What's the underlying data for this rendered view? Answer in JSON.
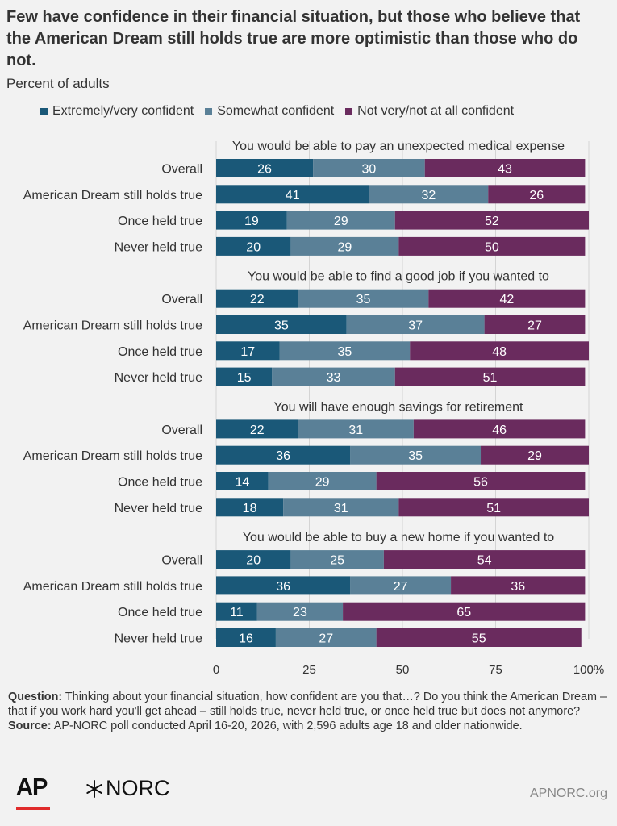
{
  "title": "Few have confidence in their financial situation, but those who believe that the American Dream still holds true are more optimistic than those who do not.",
  "subtitle": "Percent of adults",
  "legend": [
    {
      "label": "Extremely/very confident",
      "color": "#1a5878"
    },
    {
      "label": "Somewhat confident",
      "color": "#5a8097"
    },
    {
      "label": "Not very/not at all confident",
      "color": "#6a2b5e"
    }
  ],
  "chart_data": {
    "type": "bar",
    "orientation": "horizontal-stacked",
    "x_ticks": [
      "0",
      "25",
      "50",
      "75",
      "100%"
    ],
    "xlim": [
      0,
      100
    ],
    "grid": true,
    "legend_position": "top",
    "series_names": [
      "Extremely/very confident",
      "Somewhat confident",
      "Not very/not at all confident"
    ],
    "groups": [
      {
        "title": "You would be able to pay an unexpected medical expense",
        "rows": [
          {
            "label": "Overall",
            "values": [
              26,
              30,
              43
            ]
          },
          {
            "label": "American Dream still holds true",
            "values": [
              41,
              32,
              26
            ]
          },
          {
            "label": "Once held true",
            "values": [
              19,
              29,
              52
            ]
          },
          {
            "label": "Never held true",
            "values": [
              20,
              29,
              50
            ]
          }
        ]
      },
      {
        "title": "You would be able to find a good job if you wanted to",
        "rows": [
          {
            "label": "Overall",
            "values": [
              22,
              35,
              42
            ]
          },
          {
            "label": "American Dream still holds true",
            "values": [
              35,
              37,
              27
            ]
          },
          {
            "label": "Once held true",
            "values": [
              17,
              35,
              48
            ]
          },
          {
            "label": "Never held true",
            "values": [
              15,
              33,
              51
            ]
          }
        ]
      },
      {
        "title": "You will have enough savings for retirement",
        "rows": [
          {
            "label": "Overall",
            "values": [
              22,
              31,
              46
            ]
          },
          {
            "label": "American Dream still holds true",
            "values": [
              36,
              35,
              29
            ]
          },
          {
            "label": "Once held true",
            "values": [
              14,
              29,
              56
            ]
          },
          {
            "label": "Never held true",
            "values": [
              18,
              31,
              51
            ]
          }
        ]
      },
      {
        "title": "You would be able to buy a new home if you wanted to",
        "rows": [
          {
            "label": "Overall",
            "values": [
              20,
              25,
              54
            ]
          },
          {
            "label": "American Dream still holds true",
            "values": [
              36,
              27,
              36
            ]
          },
          {
            "label": "Once held true",
            "values": [
              11,
              23,
              65
            ]
          },
          {
            "label": "Never held true",
            "values": [
              16,
              27,
              55
            ]
          }
        ]
      }
    ]
  },
  "notes": {
    "question_label": "Question:",
    "question_text": " Thinking about your financial situation, how confident are you that…? Do you think the American Dream – that if you work hard you'll get ahead – still holds true, never held true, or once held true but does not anymore?",
    "source_label": "Source:",
    "source_text": " AP-NORC poll conducted April 16-20, 2026, with 2,596 adults age 18 and older nationwide."
  },
  "footer": {
    "ap_logo": "AP",
    "norc_logo": "NORC",
    "site": "APNORC.org"
  }
}
